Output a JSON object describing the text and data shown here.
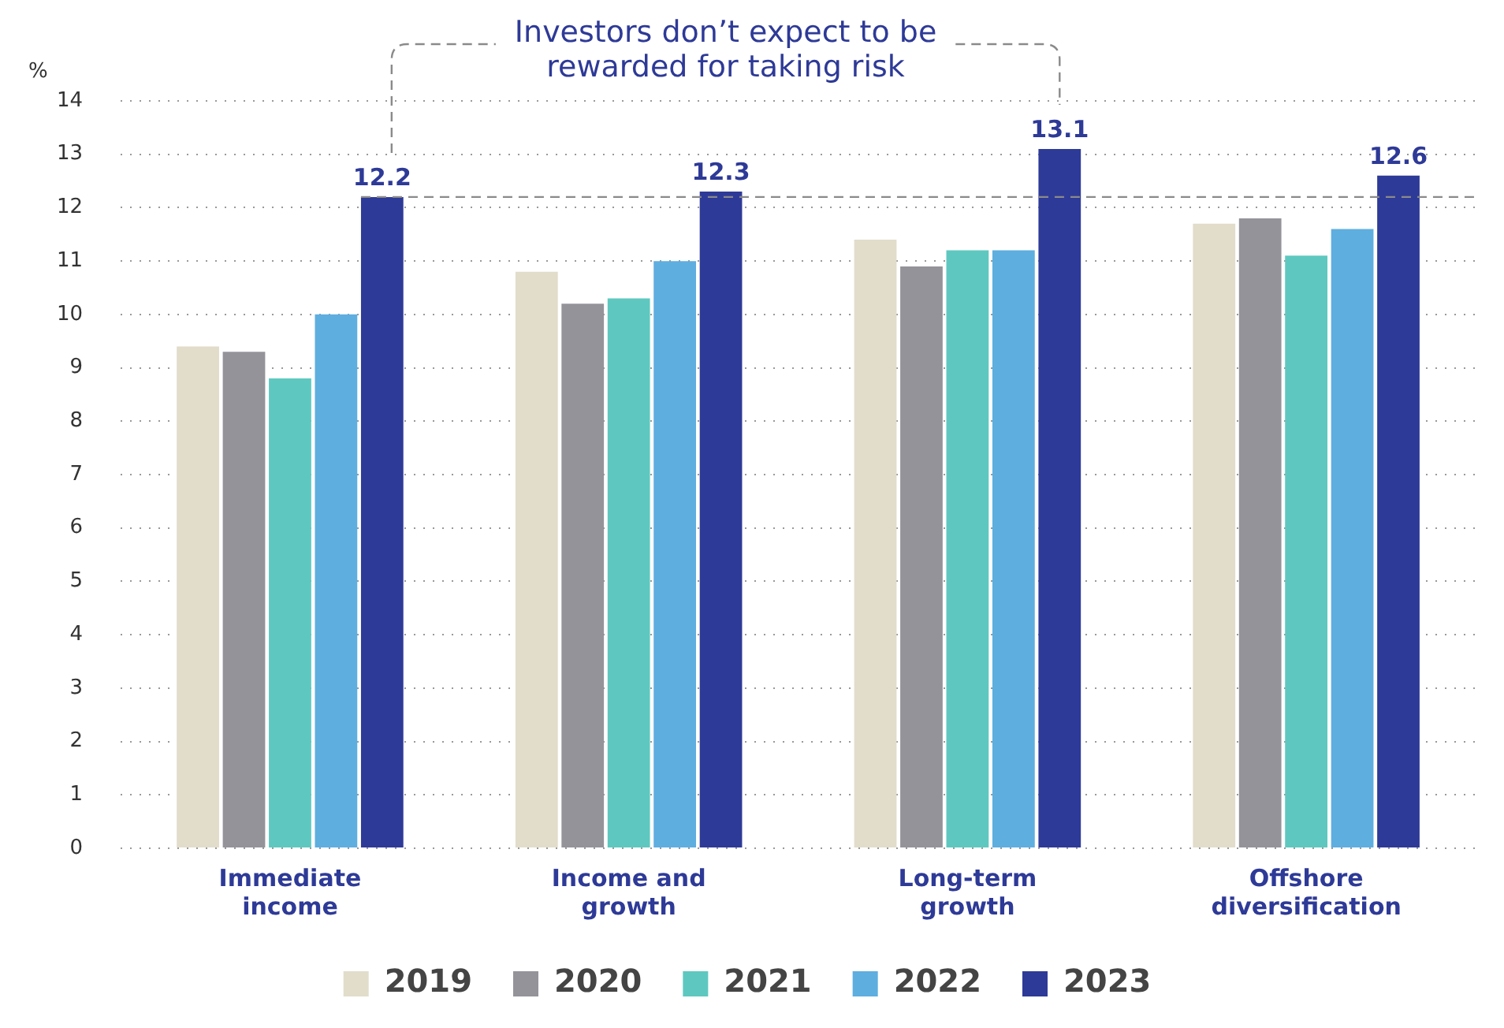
{
  "chart_data": {
    "type": "bar",
    "ylabel": "%",
    "categories": [
      "Immediate income",
      "Income and growth",
      "Long-term growth",
      "Offshore diversification"
    ],
    "series": [
      {
        "name": "2019",
        "color": "#e2dccb",
        "values": [
          9.4,
          10.8,
          11.4,
          11.7
        ]
      },
      {
        "name": "2020",
        "color": "#939399",
        "values": [
          9.3,
          10.2,
          10.9,
          11.8
        ]
      },
      {
        "name": "2021",
        "color": "#5ec8c0",
        "values": [
          8.8,
          10.3,
          11.2,
          11.1
        ]
      },
      {
        "name": "2022",
        "color": "#5eaee0",
        "values": [
          10.0,
          11.0,
          11.2,
          11.6
        ]
      },
      {
        "name": "2023",
        "color": "#2e3a97",
        "values": [
          12.2,
          12.3,
          13.1,
          12.6
        ],
        "value_labels": [
          "12.2",
          "12.3",
          "13.1",
          "12.6"
        ]
      }
    ],
    "ylim": [
      0,
      14
    ],
    "yticks": [
      0,
      1,
      2,
      3,
      4,
      5,
      6,
      7,
      8,
      9,
      10,
      11,
      12,
      13,
      14
    ],
    "grid": "y",
    "legend": "bottom",
    "ref_lines": [
      {
        "axis": "y",
        "value": 12.2,
        "color": "#8a8a8a",
        "line_style": "dashed"
      }
    ],
    "annotations": [
      "Investors don’t expect to be rewarded for taking risk"
    ]
  }
}
